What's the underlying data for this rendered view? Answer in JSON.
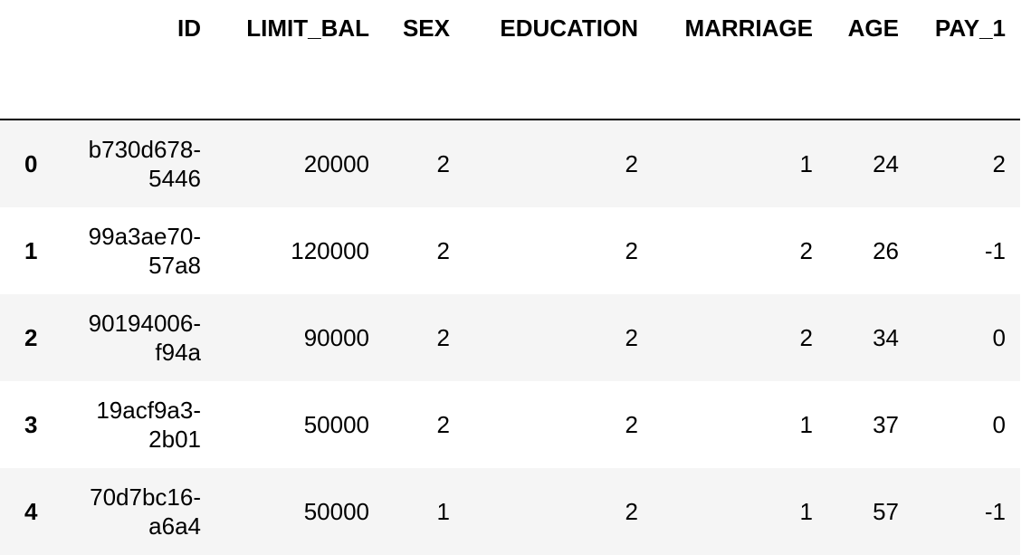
{
  "table": {
    "columns": [
      "ID",
      "LIMIT_BAL",
      "SEX",
      "EDUCATION",
      "MARRIAGE",
      "AGE",
      "PAY_1"
    ],
    "rows": [
      {
        "index": "0",
        "cells": [
          "b730d678-5446",
          "20000",
          "2",
          "2",
          "1",
          "24",
          "2"
        ]
      },
      {
        "index": "1",
        "cells": [
          "99a3ae70-57a8",
          "120000",
          "2",
          "2",
          "2",
          "26",
          "-1"
        ]
      },
      {
        "index": "2",
        "cells": [
          "90194006-f94a",
          "90000",
          "2",
          "2",
          "2",
          "34",
          "0"
        ]
      },
      {
        "index": "3",
        "cells": [
          "19acf9a3-2b01",
          "50000",
          "2",
          "2",
          "1",
          "37",
          "0"
        ]
      },
      {
        "index": "4",
        "cells": [
          "70d7bc16-a6a4",
          "50000",
          "1",
          "2",
          "1",
          "57",
          "-1"
        ]
      }
    ]
  }
}
